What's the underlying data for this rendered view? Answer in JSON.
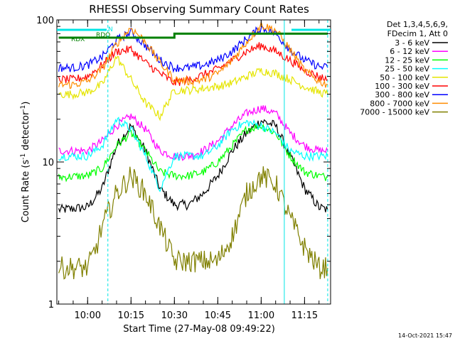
{
  "chart_data": {
    "type": "line",
    "title": "RHESSI Observing Summary Count Rates",
    "xlabel": "Start Time (27-May-08 09:49:22)",
    "ylabel": "Count Rate (s",
    "ylabel_sup": "-1",
    "ylabel_tail": " detector",
    "ylabel_sup2": "-1",
    "ylabel_end": ")",
    "y_scale": "log",
    "ylim": [
      1,
      100
    ],
    "xlim": [
      "09:49:22",
      "11:24:00"
    ],
    "x_tick_labels": [
      "10:00",
      "10:15",
      "10:30",
      "10:45",
      "11:00",
      "11:15"
    ],
    "y_tick_labels": [
      "1",
      "10",
      "100"
    ],
    "legend_header": [
      "Det 1,3,4,5,6,9,",
      "FDecim 1, Att 0"
    ],
    "legend_position": "right",
    "footer_date": "14-Oct-2021 15:47",
    "flag_labels": [
      "N",
      "RDO",
      "RDX"
    ],
    "flag_colors": {
      "N": "#00e5e5",
      "RDO": "#008000",
      "RDX": "#008000"
    },
    "grid": false,
    "background": "#ffffff",
    "series": [
      {
        "name": "3 - 6 keV",
        "color": "#000000",
        "x": [
          "09:50",
          "10:00",
          "10:05",
          "10:10",
          "10:15",
          "10:20",
          "10:25",
          "10:30",
          "10:35",
          "10:40",
          "10:45",
          "10:50",
          "10:55",
          "11:00",
          "11:05",
          "11:10",
          "11:15",
          "11:20",
          "11:23"
        ],
        "y": [
          4.6,
          4.8,
          6.5,
          13,
          18,
          12,
          6.5,
          5,
          5,
          6,
          8,
          12,
          16,
          19.5,
          18,
          11,
          6.5,
          4.8,
          4.6
        ]
      },
      {
        "name": "6 - 12 keV",
        "color": "#ff00ff",
        "x": [
          "09:50",
          "10:00",
          "10:05",
          "10:10",
          "10:15",
          "10:20",
          "10:25",
          "10:30",
          "10:35",
          "10:40",
          "10:45",
          "10:50",
          "10:55",
          "11:00",
          "11:05",
          "11:10",
          "11:15",
          "11:20",
          "11:23"
        ],
        "y": [
          12,
          12,
          14,
          18,
          21,
          17,
          12,
          11,
          11,
          12,
          14,
          18,
          22,
          24,
          22,
          16,
          13,
          12,
          12
        ]
      },
      {
        "name": "12 - 25 keV",
        "color": "#00ff00",
        "x": [
          "09:50",
          "10:00",
          "10:05",
          "10:10",
          "10:15",
          "10:20",
          "10:25",
          "10:30",
          "10:35",
          "10:40",
          "10:45",
          "10:50",
          "10:55",
          "11:00",
          "11:05",
          "11:10",
          "11:15",
          "11:20",
          "11:23"
        ],
        "y": [
          7.8,
          8,
          9,
          13,
          16,
          12,
          8.5,
          8,
          8,
          8.5,
          10,
          13,
          17,
          18,
          16,
          11,
          8.5,
          8,
          7.8
        ]
      },
      {
        "name": "25 - 50 keV",
        "color": "#00ffff",
        "x": [
          "09:50",
          "10:00",
          "10:05",
          "10:10",
          "10:15",
          "10:20",
          "10:25",
          "10:30",
          "10:35",
          "10:40",
          "10:45",
          "10:50",
          "10:55",
          "11:00",
          "11:05",
          "11:10",
          "11:15",
          "11:20",
          "11:23"
        ],
        "y": [
          11,
          11,
          13,
          20,
          17,
          11,
          6.5,
          11,
          11,
          11,
          13,
          17,
          19,
          18,
          16,
          12,
          11,
          11,
          11
        ]
      },
      {
        "name": "50 - 100 keV",
        "color": "#e5e500",
        "x": [
          "09:50",
          "09:55",
          "10:00",
          "10:05",
          "10:10",
          "10:15",
          "10:20",
          "10:25",
          "10:30",
          "10:35",
          "10:40",
          "10:45",
          "10:50",
          "10:55",
          "11:00",
          "11:05",
          "11:10",
          "11:15",
          "11:20",
          "11:23"
        ],
        "y": [
          30,
          30,
          31,
          35,
          55,
          38,
          26,
          21,
          32,
          32,
          33,
          34,
          36,
          40,
          44,
          42,
          38,
          34,
          31,
          30
        ]
      },
      {
        "name": "100 - 300 keV",
        "color": "#ff0000",
        "x": [
          "09:50",
          "09:55",
          "10:00",
          "10:05",
          "10:10",
          "10:15",
          "10:20",
          "10:25",
          "10:30",
          "10:35",
          "10:40",
          "10:45",
          "10:50",
          "10:55",
          "11:00",
          "11:05",
          "11:10",
          "11:15",
          "11:20",
          "11:23"
        ],
        "y": [
          38,
          38,
          40,
          48,
          60,
          62,
          50,
          42,
          36,
          38,
          41,
          45,
          52,
          60,
          66,
          60,
          52,
          44,
          40,
          38
        ]
      },
      {
        "name": "300 - 800 keV",
        "color": "#0000ff",
        "x": [
          "09:50",
          "09:55",
          "10:00",
          "10:05",
          "10:10",
          "10:15",
          "10:20",
          "10:25",
          "10:30",
          "10:35",
          "10:40",
          "10:45",
          "10:50",
          "10:55",
          "11:00",
          "11:05",
          "11:10",
          "11:15",
          "11:20",
          "11:23"
        ],
        "y": [
          46,
          46,
          48,
          55,
          72,
          82,
          66,
          52,
          46,
          46,
          48,
          52,
          60,
          74,
          88,
          80,
          62,
          52,
          47,
          46
        ]
      },
      {
        "name": "800 - 7000 keV",
        "color": "#ff8c00",
        "x": [
          "09:50",
          "09:55",
          "10:00",
          "10:05",
          "10:10",
          "10:15",
          "10:20",
          "10:25",
          "10:30",
          "10:35",
          "10:40",
          "10:45",
          "10:50",
          "10:55",
          "11:00",
          "11:05",
          "11:10",
          "11:15",
          "11:20",
          "11:23"
        ],
        "y": [
          35,
          35,
          37,
          45,
          68,
          88,
          70,
          50,
          38,
          37,
          38,
          42,
          52,
          70,
          92,
          85,
          62,
          44,
          37,
          35
        ]
      },
      {
        "name": "7000 - 15000 keV",
        "color": "#808000",
        "x": [
          "09:50",
          "10:00",
          "10:03",
          "10:05",
          "10:10",
          "10:15",
          "10:20",
          "10:25",
          "10:30",
          "10:35",
          "10:40",
          "10:45",
          "10:50",
          "10:55",
          "11:00",
          "11:05",
          "11:10",
          "11:15",
          "11:20",
          "11:23"
        ],
        "y": [
          1.8,
          1.8,
          2.5,
          3.5,
          6,
          8,
          6,
          3.5,
          2,
          2,
          2,
          2,
          3,
          6,
          8,
          7,
          4,
          2.5,
          1.8,
          1.8
        ]
      },
      {
        "name": "",
        "color": "#008000",
        "x": [
          "09:50",
          "10:07",
          "10:07",
          "10:30",
          "10:30",
          "11:23"
        ],
        "y": [
          75,
          75,
          75,
          75,
          80,
          80
        ]
      }
    ],
    "vertical_markers": [
      {
        "x": "10:07",
        "color": "#00e5e5",
        "style": "dashed"
      },
      {
        "x": "11:08",
        "color": "#00e5e5",
        "style": "solid"
      },
      {
        "x": "11:23",
        "color": "#00e5e5",
        "style": "dashed"
      }
    ]
  }
}
